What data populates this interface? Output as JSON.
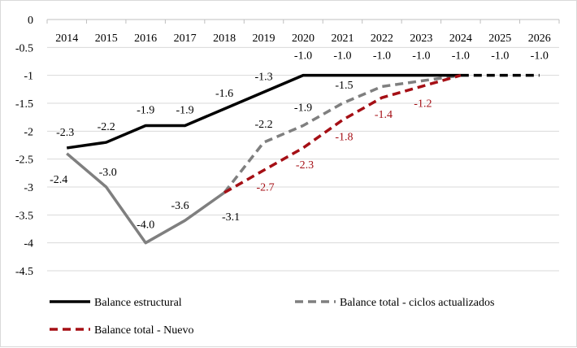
{
  "chart_data": {
    "type": "line",
    "title": "",
    "xlabel": "",
    "ylabel": "",
    "x": [
      "2014",
      "2015",
      "2016",
      "2017",
      "2018",
      "2019",
      "2020",
      "2021",
      "2022",
      "2023",
      "2024",
      "2025",
      "2026"
    ],
    "x_axis_position": "top",
    "ylim": [
      -4.5,
      0
    ],
    "yticks": [
      0,
      -0.5,
      -1,
      -1.5,
      -2,
      -2.5,
      -3,
      -3.5,
      -4,
      -4.5
    ],
    "ytick_labels": [
      "0",
      "-0.5",
      "-1",
      "-1.5",
      "-2",
      "-2.5",
      "-3",
      "-3.5",
      "-4",
      "-4.5"
    ],
    "grid": "horizontal",
    "legend_position": "bottom",
    "series": [
      {
        "name": "Balance estructural",
        "color": "#000000",
        "style": "solid",
        "values": [
          -2.3,
          -2.2,
          -1.9,
          -1.9,
          -1.6,
          -1.3,
          -1.0,
          -1.0,
          -1.0,
          -1.0,
          -1.0,
          -1.0,
          -1.0
        ],
        "labels": [
          "-2.3",
          "-2.2",
          "-1.9",
          "-1.9",
          "-1.6",
          "-1.3",
          "-1.0",
          "-1.0",
          "-1.0",
          "-1.0",
          "-1.0",
          "-1.0",
          "-1.0"
        ]
      },
      {
        "name": "Balance total - ciclos actualizados",
        "color": "#7f7f7f",
        "style": "solid-then-dashed",
        "values": [
          -2.4,
          -3.0,
          -4.0,
          -3.6,
          -3.1,
          -2.2,
          -1.9,
          -1.5,
          -1.2,
          -1.1,
          -1.0,
          null,
          null
        ],
        "labels": [
          "-2.4",
          "-3.0",
          "-4.0",
          "-3.6",
          "-3.1",
          "-2.2",
          "-1.9",
          "-1.5",
          null,
          null,
          null,
          null,
          null
        ]
      },
      {
        "name": "Balance total - Nuevo",
        "color": "#a50f15",
        "style": "dashed",
        "values": [
          null,
          null,
          null,
          null,
          -3.1,
          -2.7,
          -2.3,
          -1.8,
          -1.4,
          -1.2,
          -1.0,
          null,
          null
        ],
        "labels": [
          null,
          null,
          null,
          null,
          null,
          "-2.7",
          "-2.3",
          "-1.8",
          "-1.4",
          "-1.2",
          null,
          null,
          null
        ]
      }
    ]
  }
}
